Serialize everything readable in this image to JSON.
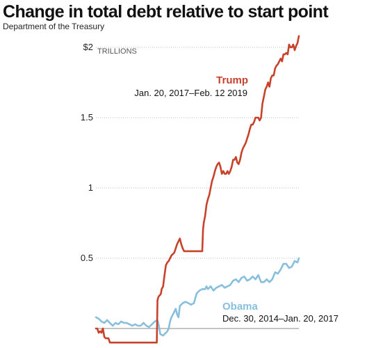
{
  "title": "Change in total debt relative to start point",
  "source": "Department of the Treasury",
  "chart_data": {
    "type": "line",
    "title": "Change in total debt relative to start point",
    "subtitle": "Department of the Treasury",
    "ylabel": "TRILLIONS",
    "ylim": [
      -0.1,
      2.05
    ],
    "yticks": [
      0,
      0.5,
      1,
      1.5,
      2
    ],
    "ytick_labels": [
      "",
      "0.5",
      "1",
      "1.5",
      "$2"
    ],
    "grid": true,
    "zero_line": true,
    "x_unit": "index",
    "colors": {
      "trump": "#c8412b",
      "obama": "#87bfdc",
      "grid": "#bbbbbb",
      "zero": "#888888"
    },
    "series": [
      {
        "name": "Trump",
        "date_range": "Jan. 20, 2017–Feb. 12 2019",
        "color": "#c8412b",
        "x": [
          0,
          2,
          4,
          6,
          8,
          9,
          10,
          11,
          12,
          14,
          16,
          18,
          20,
          24,
          28,
          32,
          36,
          40,
          44,
          48,
          52,
          56,
          60,
          64,
          68,
          72,
          76,
          80,
          84,
          87,
          88,
          89,
          90,
          92,
          93,
          94,
          96,
          98,
          100,
          102,
          104,
          106,
          108,
          110,
          112,
          114,
          116,
          118,
          120,
          122,
          124,
          126,
          128,
          130,
          132,
          134,
          136,
          138,
          140,
          142,
          144,
          146,
          148,
          150,
          152,
          153,
          154,
          156,
          158,
          160,
          162,
          164,
          166,
          168,
          170,
          172,
          174,
          176,
          178,
          180,
          182,
          184,
          186,
          188,
          190,
          192,
          194,
          196,
          198,
          200,
          202,
          204,
          206,
          208,
          210,
          212,
          214,
          216,
          218,
          220,
          222,
          224,
          226,
          228,
          230,
          232,
          234,
          236,
          238,
          240,
          242,
          244,
          246,
          248,
          250,
          252,
          254,
          256,
          258,
          260,
          262,
          264,
          266,
          268,
          270,
          272,
          274,
          276,
          278,
          280,
          282,
          284,
          286,
          288,
          290
        ],
        "values": [
          0.0,
          0.0,
          -0.03,
          -0.02,
          -0.03,
          -0.01,
          0.0,
          -0.03,
          -0.06,
          -0.07,
          -0.07,
          -0.07,
          -0.1,
          -0.1,
          -0.1,
          -0.1,
          -0.1,
          -0.1,
          -0.1,
          -0.1,
          -0.1,
          -0.1,
          -0.1,
          -0.1,
          -0.1,
          -0.1,
          -0.1,
          -0.1,
          -0.1,
          -0.1,
          0.2,
          0.22,
          0.23,
          0.24,
          0.25,
          0.28,
          0.3,
          0.38,
          0.45,
          0.47,
          0.48,
          0.5,
          0.52,
          0.53,
          0.54,
          0.57,
          0.6,
          0.62,
          0.64,
          0.6,
          0.57,
          0.55,
          0.55,
          0.55,
          0.55,
          0.55,
          0.55,
          0.55,
          0.55,
          0.55,
          0.55,
          0.55,
          0.55,
          0.55,
          0.55,
          0.7,
          0.75,
          0.8,
          0.88,
          0.92,
          0.95,
          1.0,
          1.05,
          1.08,
          1.12,
          1.15,
          1.17,
          1.18,
          1.15,
          1.1,
          1.12,
          1.1,
          1.1,
          1.12,
          1.1,
          1.12,
          1.15,
          1.2,
          1.2,
          1.22,
          1.18,
          1.17,
          1.2,
          1.25,
          1.28,
          1.3,
          1.32,
          1.35,
          1.38,
          1.42,
          1.45,
          1.45,
          1.47,
          1.5,
          1.5,
          1.5,
          1.48,
          1.5,
          1.6,
          1.65,
          1.7,
          1.72,
          1.75,
          1.72,
          1.78,
          1.8,
          1.8,
          1.85,
          1.87,
          1.88,
          1.9,
          1.92,
          1.9,
          1.95,
          1.95,
          1.96,
          1.95,
          2.02,
          2.0,
          2.0,
          2.02,
          1.98,
          2.01,
          2.03,
          2.08
        ]
      },
      {
        "name": "Obama",
        "date_range": "Dec. 30, 2014–Jan. 20, 2017",
        "color": "#87bfdc",
        "x": [
          0,
          4,
          8,
          12,
          16,
          20,
          24,
          28,
          32,
          36,
          40,
          44,
          48,
          52,
          56,
          60,
          64,
          68,
          72,
          76,
          80,
          84,
          88,
          90,
          92,
          96,
          100,
          102,
          104,
          106,
          108,
          110,
          112,
          114,
          116,
          118,
          120,
          124,
          128,
          132,
          136,
          140,
          144,
          148,
          152,
          156,
          158,
          160,
          164,
          168,
          172,
          176,
          180,
          184,
          188,
          192,
          196,
          200,
          204,
          208,
          212,
          216,
          220,
          224,
          228,
          232,
          236,
          240,
          244,
          248,
          252,
          256,
          260,
          264,
          268,
          272,
          276,
          280,
          284,
          288,
          290
        ],
        "values": [
          0.08,
          0.07,
          0.05,
          0.04,
          0.06,
          0.04,
          0.02,
          0.04,
          0.03,
          0.05,
          0.04,
          0.04,
          0.03,
          0.02,
          0.03,
          0.02,
          0.02,
          0.04,
          0.02,
          0.01,
          0.03,
          0.05,
          0.06,
          0.02,
          -0.04,
          -0.05,
          -0.03,
          -0.02,
          0.0,
          0.05,
          0.08,
          0.1,
          0.12,
          0.14,
          0.1,
          0.08,
          0.16,
          0.18,
          0.19,
          0.18,
          0.17,
          0.18,
          0.25,
          0.27,
          0.28,
          0.28,
          0.3,
          0.28,
          0.3,
          0.27,
          0.29,
          0.3,
          0.31,
          0.29,
          0.3,
          0.31,
          0.34,
          0.35,
          0.33,
          0.36,
          0.37,
          0.34,
          0.35,
          0.37,
          0.35,
          0.38,
          0.33,
          0.33,
          0.35,
          0.33,
          0.35,
          0.4,
          0.39,
          0.42,
          0.46,
          0.46,
          0.43,
          0.44,
          0.48,
          0.47,
          0.5
        ]
      }
    ]
  }
}
